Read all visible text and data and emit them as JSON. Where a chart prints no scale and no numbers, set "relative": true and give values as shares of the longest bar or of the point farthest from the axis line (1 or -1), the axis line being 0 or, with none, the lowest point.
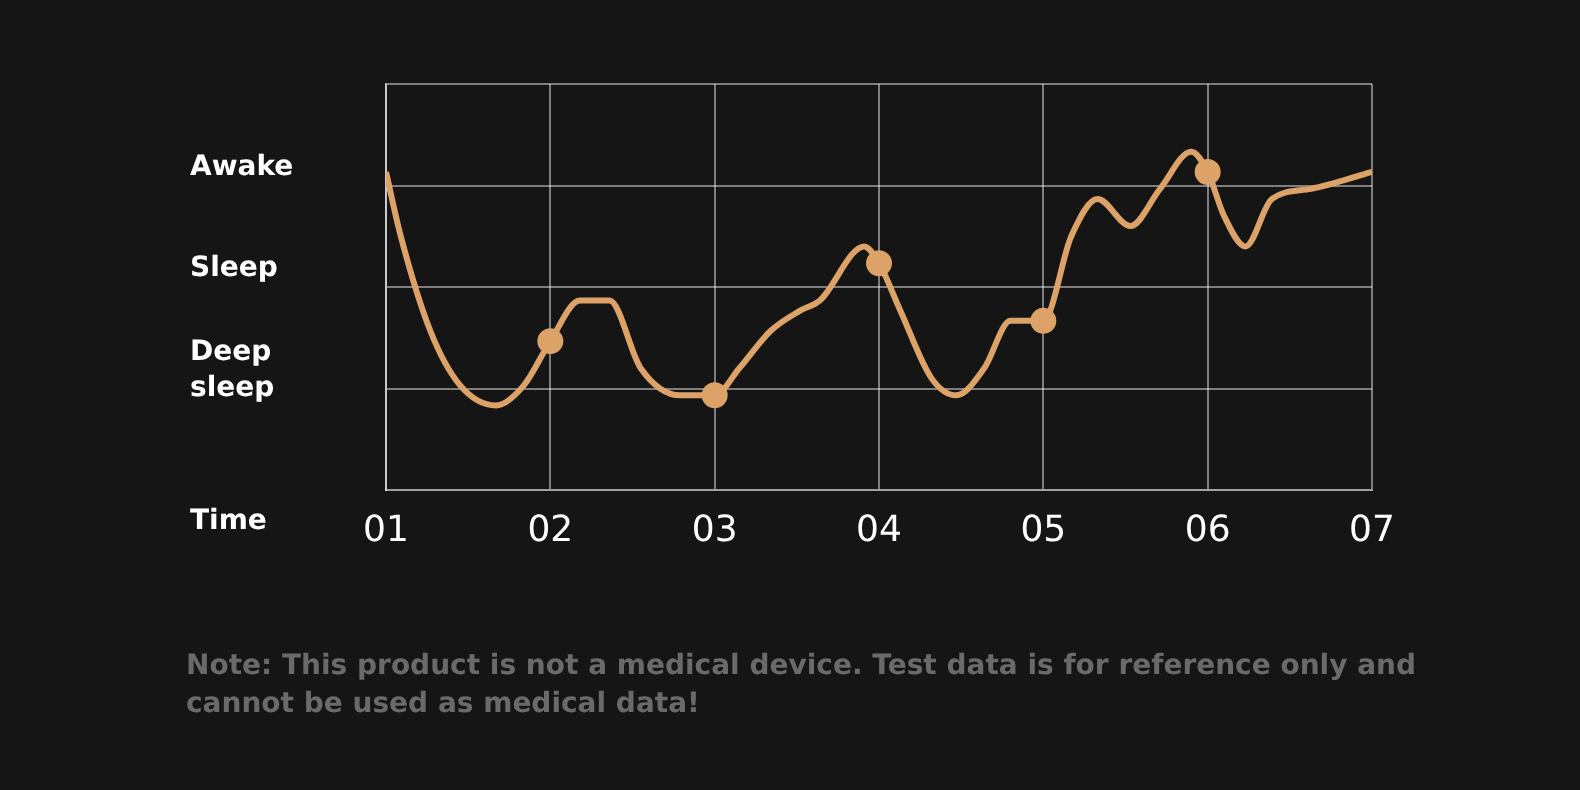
{
  "chart_data": {
    "type": "line",
    "xlabel": "Time",
    "relative": true,
    "annotations": [
      "Awake",
      "Sleep",
      "Deep sleep",
      "Note: This product is not a medical device. Test data is for reference only and cannot be used as medical data!"
    ],
    "xlim": [
      1,
      7
    ],
    "xticks": [
      {
        "value": 1,
        "label": "01"
      },
      {
        "value": 2,
        "label": "02"
      },
      {
        "value": 3,
        "label": "03"
      },
      {
        "value": 4,
        "label": "04"
      },
      {
        "value": 5,
        "label": "05"
      },
      {
        "value": 6,
        "label": "06"
      },
      {
        "value": 7,
        "label": "07"
      }
    ],
    "grid": true,
    "legend": false,
    "series": [
      {
        "color": "#dca268",
        "marker": "none",
        "x": [
          1,
          1.09,
          1.27,
          1.45,
          1.67,
          1.84,
          2,
          2.18,
          2.36,
          2.55,
          2.79,
          3,
          3.15,
          3.34,
          3.52,
          3.64,
          3.91,
          4,
          4.13,
          4.32,
          4.47,
          4.64,
          4.8,
          5,
          5.17,
          5.33,
          5.53,
          5.71,
          5.9,
          6,
          6.1,
          6.23,
          6.39,
          6.63,
          7
        ],
        "values": [
          0.94,
          0.75,
          0.47,
          0.31,
          0.25,
          0.31,
          0.44,
          0.56,
          0.56,
          0.36,
          0.28,
          0.28,
          0.36,
          0.47,
          0.53,
          0.56,
          0.72,
          0.67,
          0.53,
          0.33,
          0.28,
          0.36,
          0.5,
          0.5,
          0.75,
          0.86,
          0.78,
          0.89,
          1,
          0.94,
          0.81,
          0.72,
          0.86,
          0.89,
          0.94
        ]
      },
      {
        "type": "scatter",
        "color": "#dca268",
        "marker": "circle",
        "x": [
          2,
          3,
          4,
          5,
          6
        ],
        "values": [
          0.44,
          0.28,
          0.67,
          0.5,
          0.94
        ]
      }
    ]
  }
}
